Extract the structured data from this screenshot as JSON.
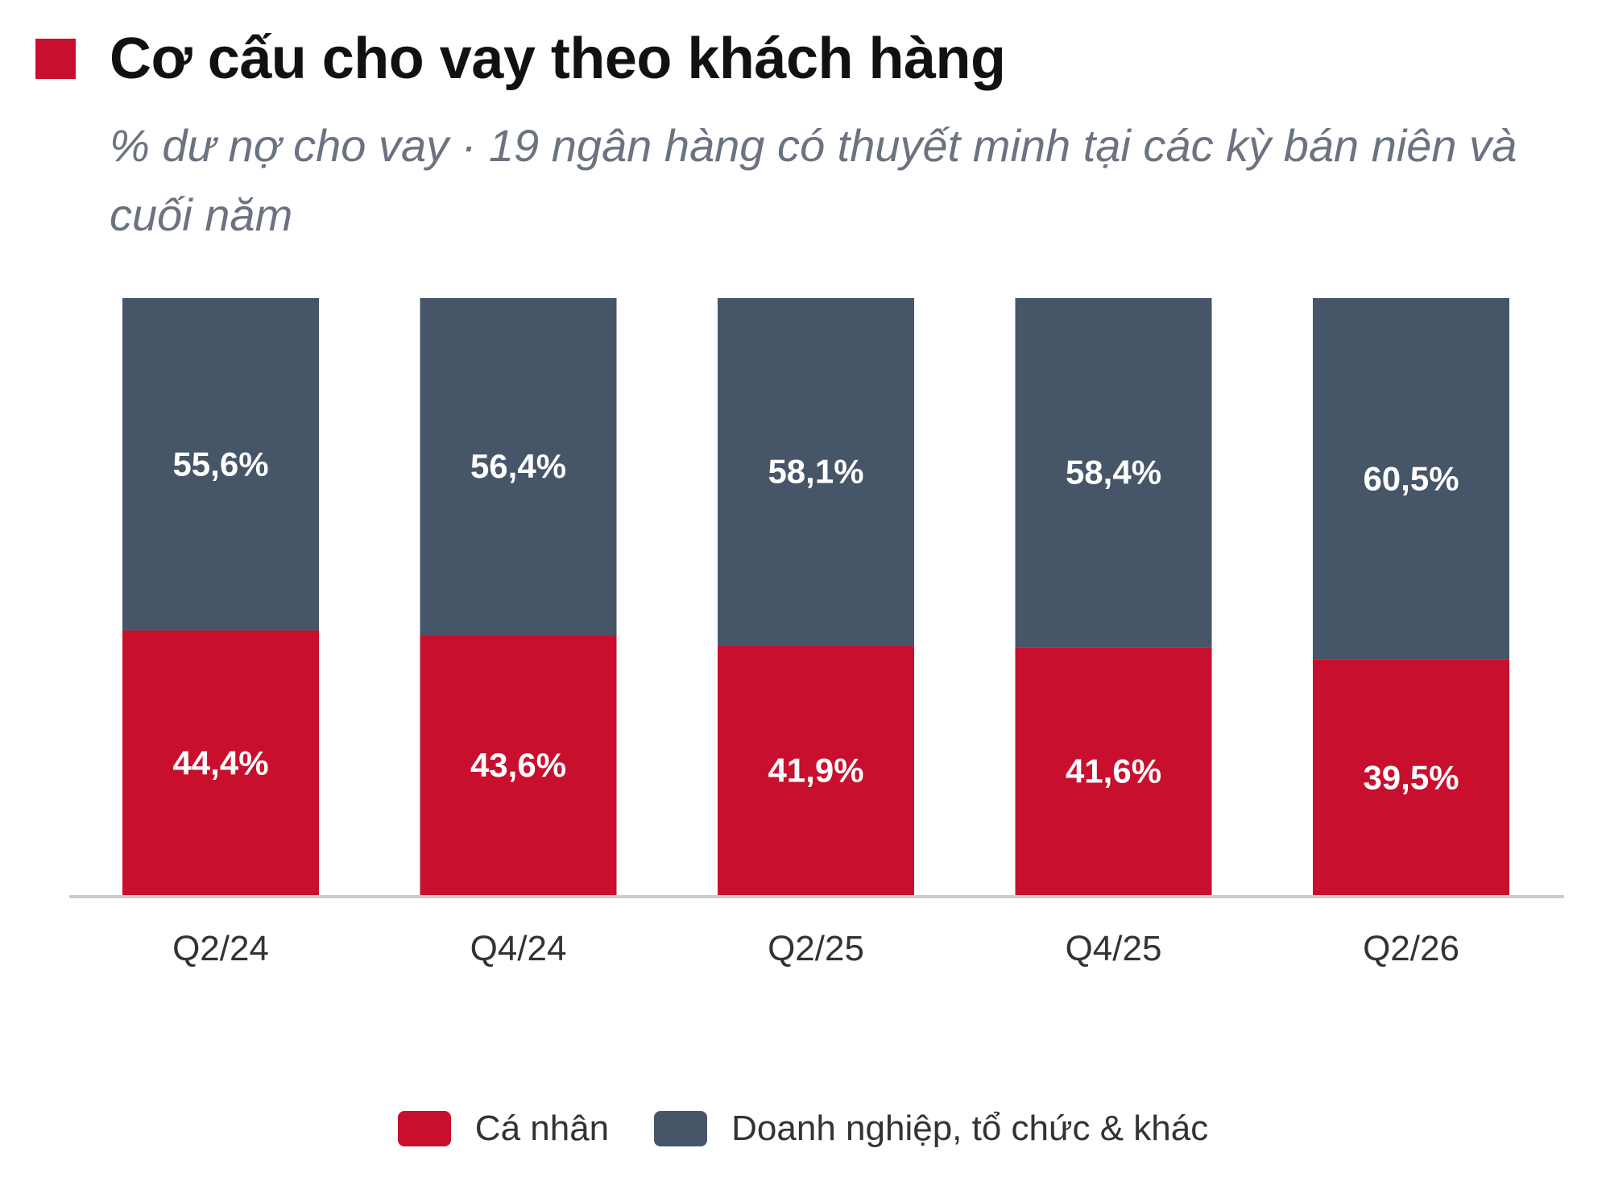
{
  "header": {
    "title": "Cơ cấu cho vay theo khách hàng",
    "subtitle": "% dư nợ cho vay · 19 ngân hàng có thuyết minh tại các kỳ bán niên và cuối năm"
  },
  "colors": {
    "accent": "#c8102e",
    "individual": "#c8102e",
    "business": "#475569",
    "axis": "#cccccc",
    "label_text": "#ffffff",
    "tick_text": "#333333"
  },
  "chart_data": {
    "type": "bar",
    "stacked": true,
    "percent_stacked": true,
    "title": "Cơ cấu cho vay theo khách hàng",
    "subtitle": "% dư nợ cho vay · 19 ngân hàng có thuyết minh tại các kỳ bán niên và cuối năm",
    "categories": [
      "Q2/24",
      "Q4/24",
      "Q2/25",
      "Q4/25",
      "Q2/26"
    ],
    "series": [
      {
        "name": "Cá nhân",
        "values": [
          44.4,
          43.6,
          41.9,
          41.6,
          39.5
        ],
        "labels": [
          "44,4%",
          "43,6%",
          "41,9%",
          "41,6%",
          "39,5%"
        ]
      },
      {
        "name": "Doanh nghiệp, tổ chức & khác",
        "values": [
          55.6,
          56.4,
          58.1,
          58.4,
          60.5
        ],
        "labels": [
          "55,6%",
          "56,4%",
          "58,1%",
          "58,4%",
          "60,5%"
        ]
      }
    ],
    "ylim": [
      0,
      100
    ],
    "grid": false,
    "legend": "bottom"
  }
}
